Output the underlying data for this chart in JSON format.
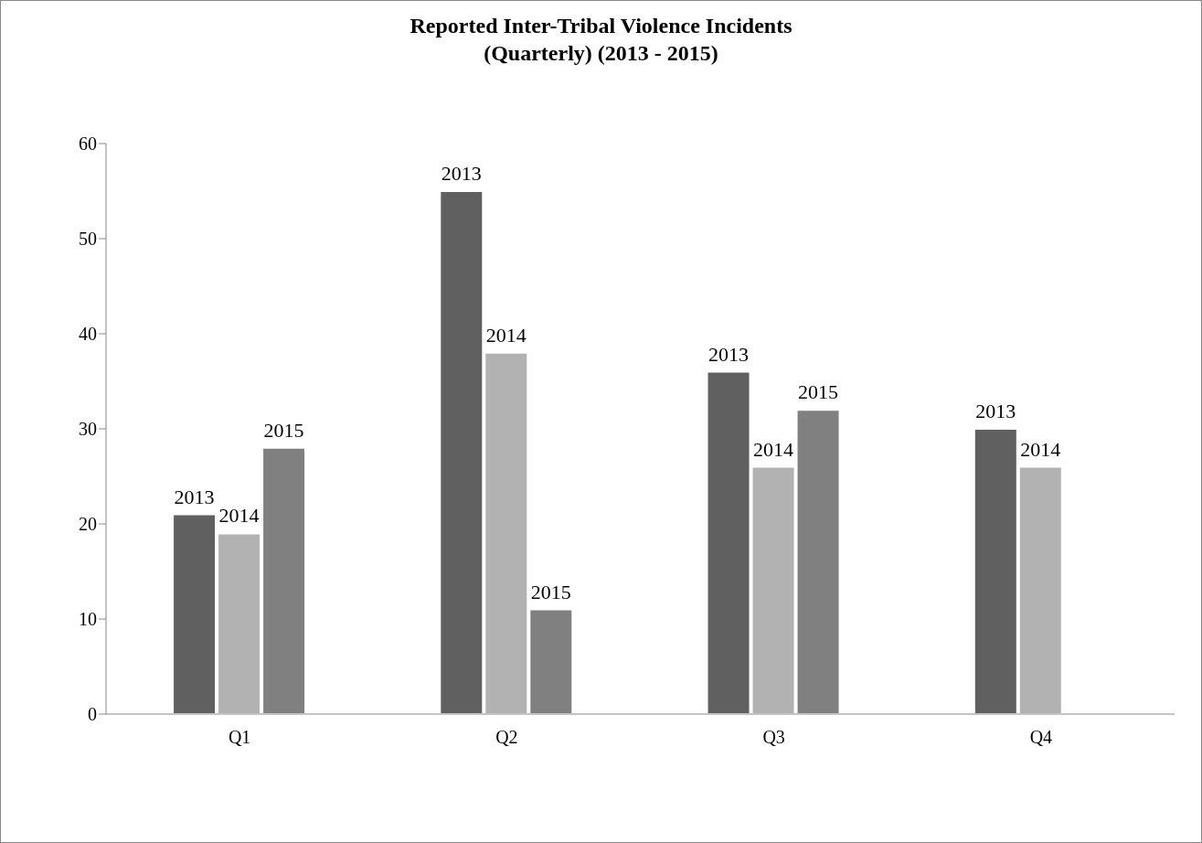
{
  "chart_data": {
    "type": "bar",
    "title": "Reported Inter-Tribal Violence Incidents\n(Quarterly) (2013 - 2015)",
    "categories": [
      "Q1",
      "Q2",
      "Q3",
      "Q4"
    ],
    "series": [
      {
        "name": "2013",
        "color": "#606060",
        "values": [
          21,
          55,
          36,
          30
        ]
      },
      {
        "name": "2014",
        "color": "#b2b2b2",
        "values": [
          19,
          38,
          26,
          26
        ]
      },
      {
        "name": "2015",
        "color": "#808080",
        "values": [
          28,
          11,
          32,
          null
        ]
      }
    ],
    "ylim": [
      0,
      60
    ],
    "yticks": [
      0,
      10,
      20,
      30,
      40,
      50,
      60
    ],
    "grid": false,
    "legend": false
  }
}
